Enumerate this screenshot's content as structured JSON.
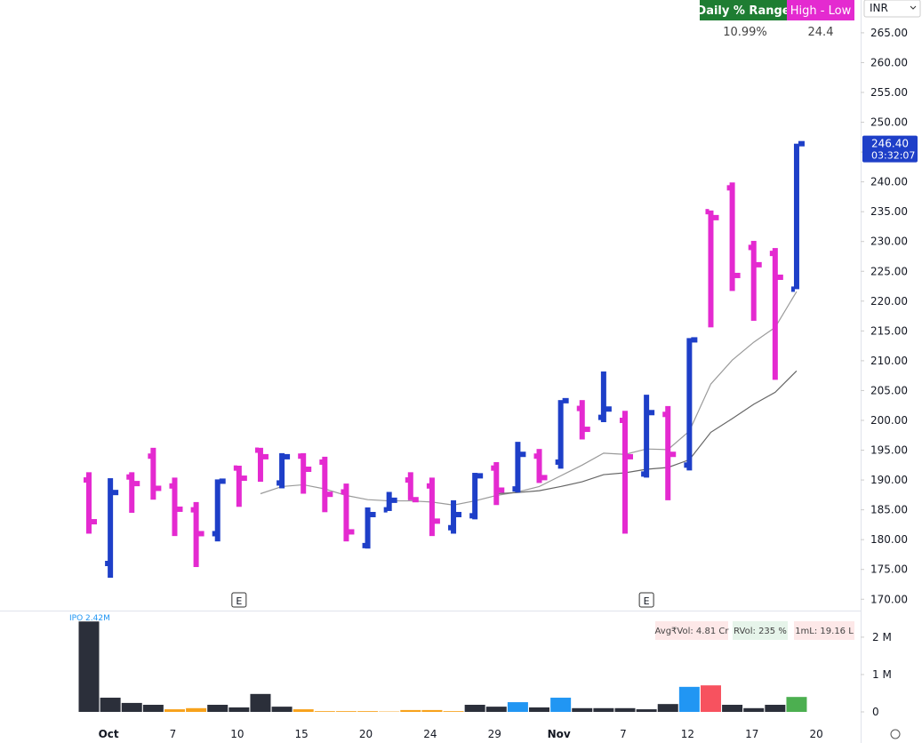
{
  "chart_data": {
    "type": "ohlc",
    "header": {
      "range_label": "Daily % Range",
      "range_value": "10.99%",
      "hl_label": "High - Low",
      "hl_value": "24.4",
      "currency": "INR"
    },
    "open": [
      190,
      176,
      190.5,
      194,
      189,
      185,
      181,
      192,
      195,
      189.5,
      194,
      193,
      188,
      179,
      185,
      190,
      189,
      182,
      184,
      192,
      188.5,
      194,
      193,
      202,
      200.5,
      200,
      191,
      201,
      192.5,
      235,
      239,
      229,
      228,
      222
    ],
    "high": [
      191.3,
      190.3,
      191.3,
      195.4,
      190.4,
      186.3,
      190.1,
      192.4,
      195.4,
      194.5,
      194.5,
      193.9,
      189.4,
      185.4,
      188,
      191.3,
      190.4,
      186.6,
      191.2,
      193,
      196.4,
      195.2,
      203.4,
      203.4,
      208.2,
      201.6,
      204.3,
      202.4,
      213.8,
      235.2,
      239.9,
      230.1,
      228.9,
      246.4
    ],
    "low": [
      181,
      173.6,
      184.5,
      186.7,
      180.6,
      175.4,
      179.7,
      185.5,
      189.7,
      188.6,
      187.7,
      184.6,
      179.7,
      178.5,
      184.8,
      186.6,
      180.6,
      181,
      183.4,
      185.8,
      187.9,
      189.5,
      191.9,
      196.8,
      199.7,
      181,
      190.4,
      186.6,
      191.6,
      215.6,
      221.7,
      216.7,
      206.8,
      222
    ],
    "close": [
      183,
      187.9,
      189.4,
      188.6,
      185.1,
      181,
      189.8,
      190.3,
      193.9,
      193.9,
      191.8,
      187.6,
      181.3,
      184.2,
      186.6,
      186.7,
      183.1,
      184.2,
      190.7,
      188.3,
      194.3,
      190.4,
      203.3,
      198.5,
      201.9,
      193.9,
      201.3,
      194.3,
      213.5,
      234,
      224.3,
      226.1,
      224,
      246.4
    ],
    "up_color": "#1e3fc8",
    "down_color": "#e42ad0",
    "last_price": {
      "value": 246.4,
      "label": "246.40",
      "timer": "03:32:07"
    },
    "moving_averages": [
      {
        "color": "#9a9a9a",
        "values": [
          null,
          null,
          null,
          null,
          null,
          null,
          null,
          null,
          187.7,
          188.9,
          189.2,
          188.5,
          187.4,
          186.7,
          186.5,
          186.5,
          186.3,
          185.8,
          186.5,
          187.4,
          188.0,
          188.9,
          190.7,
          192.5,
          194.5,
          194.3,
          195.2,
          195.1,
          198.2,
          206.1,
          210.1,
          213.1,
          215.6,
          221.6
        ]
      },
      {
        "color": "#666666",
        "values": [
          null,
          null,
          null,
          null,
          null,
          null,
          null,
          null,
          null,
          null,
          null,
          null,
          null,
          null,
          null,
          null,
          null,
          null,
          null,
          187.7,
          187.9,
          188.2,
          188.9,
          189.7,
          190.9,
          191.2,
          191.8,
          192.1,
          193.4,
          198.0,
          200.3,
          202.7,
          204.7,
          208.3
        ]
      }
    ],
    "ylim": [
      168.1,
      270.5
    ],
    "yticks": [
      {
        "value": 170,
        "label": "170.00"
      },
      {
        "value": 175,
        "label": "175.00"
      },
      {
        "value": 180,
        "label": "180.00"
      },
      {
        "value": 185,
        "label": "185.00"
      },
      {
        "value": 190,
        "label": "190.00"
      },
      {
        "value": 195,
        "label": "195.00"
      },
      {
        "value": 200,
        "label": "200.00"
      },
      {
        "value": 205,
        "label": "205.00"
      },
      {
        "value": 210,
        "label": "210.00"
      },
      {
        "value": 215,
        "label": "215.00"
      },
      {
        "value": 220,
        "label": "220.00"
      },
      {
        "value": 225,
        "label": "225.00"
      },
      {
        "value": 230,
        "label": "230.00"
      },
      {
        "value": 235,
        "label": "235.00"
      },
      {
        "value": 240,
        "label": "240.00"
      },
      {
        "value": 245,
        "label": "245.00"
      },
      {
        "value": 250,
        "label": "250.00"
      },
      {
        "value": 255,
        "label": "255.00"
      },
      {
        "value": 260,
        "label": "260.00"
      },
      {
        "value": 265,
        "label": "265.00"
      }
    ],
    "xticks": [
      {
        "value": 1,
        "label": "Oct"
      },
      {
        "value": 4,
        "label": "7"
      },
      {
        "value": 7,
        "label": "10"
      },
      {
        "value": 10,
        "label": "15"
      },
      {
        "value": 13,
        "label": "20"
      },
      {
        "value": 16,
        "label": "24"
      },
      {
        "value": 19,
        "label": "29"
      },
      {
        "value": 22,
        "label": "Nov"
      },
      {
        "value": 25,
        "label": "7"
      },
      {
        "value": 28,
        "label": "12"
      },
      {
        "value": 31,
        "label": "17"
      },
      {
        "value": 34,
        "label": "20"
      }
    ],
    "events": [
      {
        "value": 7,
        "label": "E"
      },
      {
        "value": 26,
        "label": "E"
      }
    ],
    "volume": {
      "values": [
        2420000,
        380000,
        240000,
        190000,
        70000,
        100000,
        190000,
        120000,
        480000,
        140000,
        70000,
        20000,
        20000,
        20000,
        10000,
        50000,
        50000,
        20000,
        190000,
        140000,
        260000,
        120000,
        380000,
        100000,
        100000,
        100000,
        70000,
        210000,
        670000,
        710000,
        190000,
        100000,
        190000,
        400000
      ],
      "colors": [
        "#2b2f3a",
        "#2b2f3a",
        "#2b2f3a",
        "#2b2f3a",
        "#f7a21b",
        "#f7a21b",
        "#2b2f3a",
        "#2b2f3a",
        "#2b2f3a",
        "#2b2f3a",
        "#f7a21b",
        "#f7a21b",
        "#f7a21b",
        "#f7a21b",
        "#f7a21b",
        "#f7a21b",
        "#f7a21b",
        "#f7a21b",
        "#2b2f3a",
        "#2b2f3a",
        "#2196f3",
        "#2b2f3a",
        "#2196f3",
        "#2b2f3a",
        "#2b2f3a",
        "#2b2f3a",
        "#2b2f3a",
        "#2b2f3a",
        "#2196f3",
        "#f7525f",
        "#2b2f3a",
        "#2b2f3a",
        "#2b2f3a",
        "#4caf50"
      ],
      "ylim": [
        0,
        2640000
      ],
      "yticks": [
        {
          "value": 0,
          "label": "0"
        },
        {
          "value": 1000000,
          "label": "1 M"
        },
        {
          "value": 2000000,
          "label": "2 M"
        }
      ],
      "ipo_label": "IPO 2.42M",
      "stats": [
        "Avg₹Vol: 4.81 Cr",
        "RVol: 235 %",
        "1mL: 19.16 L"
      ]
    }
  }
}
